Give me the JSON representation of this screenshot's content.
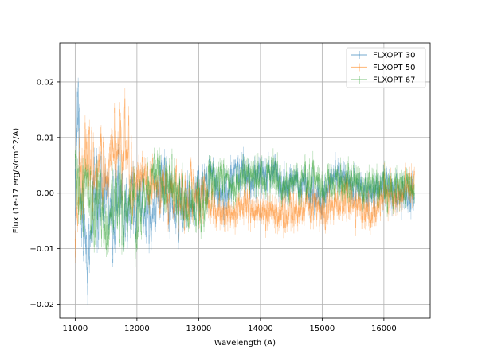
{
  "chart_data": {
    "type": "line",
    "xlabel": "Wavelength (A)",
    "ylabel": "Flux (1e-17 erg/s/cm^2/A)",
    "xlim": [
      10750,
      16750
    ],
    "ylim": [
      -0.0225,
      0.027
    ],
    "xticks": [
      11000,
      12000,
      13000,
      14000,
      15000,
      16000
    ],
    "xtick_labels": [
      "11000",
      "12000",
      "13000",
      "14000",
      "15000",
      "16000"
    ],
    "yticks": [
      -0.02,
      -0.01,
      0.0,
      0.01,
      0.02
    ],
    "ytick_labels": [
      "−0.02",
      "−0.01",
      "0.00",
      "0.01",
      "0.02"
    ],
    "grid": true,
    "legend_position": "top-right",
    "series": [
      {
        "name": "FLXOPT 30",
        "color": "#1f77b4",
        "x": [
          11000,
          11050,
          11100,
          11150,
          11200,
          11250,
          11300,
          11400,
          11500,
          11600,
          11700,
          11800,
          11900,
          12000,
          12200,
          12400,
          12600,
          12800,
          13000,
          13200,
          13400,
          13600,
          13800,
          14000,
          14200,
          14400,
          14600,
          14800,
          15000,
          15200,
          15400,
          15600,
          15800,
          16000,
          16200,
          16400,
          16500
        ],
        "y": [
          0.003,
          0.015,
          -0.005,
          -0.008,
          -0.014,
          -0.006,
          0.002,
          -0.004,
          0.001,
          -0.006,
          0.002,
          -0.003,
          -0.002,
          0.001,
          -0.004,
          0.002,
          -0.004,
          -0.002,
          0.0,
          0.002,
          -0.001,
          0.004,
          0.002,
          0.003,
          0.004,
          0.001,
          0.002,
          0.0,
          -0.001,
          0.003,
          0.002,
          0.001,
          0.0,
          0.001,
          0.0,
          -0.001,
          0.0
        ]
      },
      {
        "name": "FLXOPT 50",
        "color": "#ff7f0e",
        "x": [
          11000,
          11100,
          11200,
          11300,
          11400,
          11500,
          11600,
          11700,
          11800,
          11900,
          12000,
          12200,
          12400,
          12600,
          12800,
          13000,
          13200,
          13400,
          13600,
          13800,
          14000,
          14200,
          14400,
          14600,
          14800,
          15000,
          15200,
          15400,
          15600,
          15800,
          16000,
          16200,
          16400,
          16500
        ],
        "y": [
          -0.006,
          0.002,
          0.006,
          0.004,
          0.006,
          0.002,
          0.008,
          0.007,
          0.009,
          0.004,
          0.003,
          0.002,
          0.001,
          -0.001,
          0.0,
          0.0,
          -0.002,
          -0.004,
          -0.003,
          -0.002,
          -0.003,
          -0.004,
          -0.004,
          -0.003,
          -0.002,
          -0.003,
          -0.002,
          -0.001,
          -0.003,
          -0.003,
          0.0,
          -0.001,
          0.001,
          0.001
        ]
      },
      {
        "name": "FLXOPT 67",
        "color": "#2ca02c",
        "x": [
          11000,
          11100,
          11200,
          11300,
          11400,
          11500,
          11600,
          11700,
          11800,
          11900,
          12000,
          12200,
          12400,
          12600,
          12800,
          13000,
          13200,
          13400,
          13600,
          13800,
          14000,
          14200,
          14400,
          14600,
          14800,
          15000,
          15200,
          15400,
          15600,
          15800,
          16000,
          16200,
          16400,
          16500
        ],
        "y": [
          0.004,
          -0.004,
          0.002,
          -0.005,
          0.001,
          -0.006,
          -0.004,
          -0.002,
          -0.005,
          -0.003,
          -0.004,
          0.002,
          0.003,
          0.001,
          -0.002,
          -0.003,
          0.002,
          0.003,
          0.001,
          0.004,
          0.002,
          0.003,
          0.001,
          0.002,
          0.003,
          0.001,
          0.002,
          0.002,
          0.001,
          0.002,
          0.001,
          0.0,
          0.001,
          0.0
        ]
      }
    ]
  }
}
